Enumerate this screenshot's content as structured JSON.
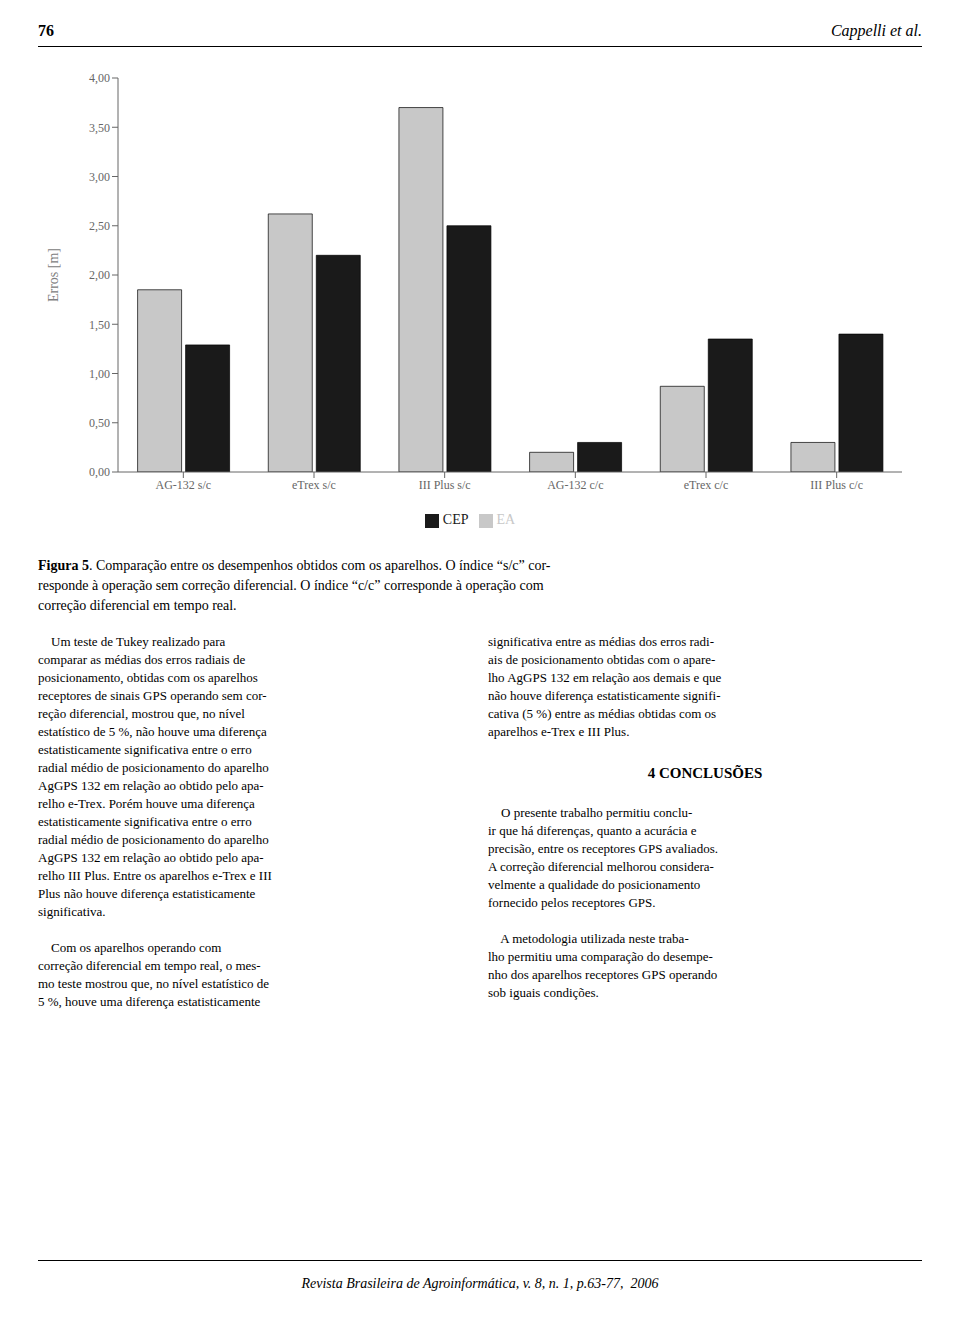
{
  "chart_data": {
    "type": "bar",
    "categories": [
      "AG-132 s/c",
      "eTrex s/c",
      "III Plus s/c",
      "AG-132 c/c",
      "eTrex c/c",
      "III Plus c/c"
    ],
    "series": [
      {
        "name": "EA",
        "color": "#C8C8C8",
        "values": [
          1.85,
          2.62,
          3.7,
          0.2,
          0.87,
          0.3
        ]
      },
      {
        "name": "CEP",
        "color": "#1a1a1a",
        "values": [
          1.29,
          2.2,
          2.5,
          0.3,
          1.35,
          1.4
        ]
      }
    ],
    "ylabel": "Erros [m]",
    "ylim": [
      0,
      4.0
    ],
    "yticks": [
      {
        "value": 0.0,
        "label": "0,00"
      },
      {
        "value": 0.5,
        "label": "0,50"
      },
      {
        "value": 1.0,
        "label": "1,00"
      },
      {
        "value": 1.5,
        "label": "1,50"
      },
      {
        "value": 2.0,
        "label": "2,00"
      },
      {
        "value": 2.5,
        "label": "2,50"
      },
      {
        "value": 3.0,
        "label": "3,00"
      },
      {
        "value": 3.5,
        "label": "3,50"
      },
      {
        "value": 4.0,
        "label": "4,00"
      }
    ],
    "grid": false,
    "legend": "bottom",
    "annotations": [
      "76",
      "Cappelli et al.",
      "Figura 5",
      ". Comparação entre os desempenhos obtidos com os aparelhos. O índice “s/c” cor-\nresponde à operação sem correção diferencial. O índice “c/c” corresponde à operação com\ncorreção diferencial em tempo real.",
      "    Um teste de Tukey realizado para\ncomparar as médias dos erros radiais de\nposicionamento, obtidas com os aparelhos\nreceptores de sinais GPS operando sem cor-\nreção diferencial, mostrou que, no nível\nestatístico de 5 %, não houve uma diferença\nestatisticamente significativa entre o erro\nradial médio de posicionamento do aparelho\nAgGPS 132 em relação ao obtido pelo apa-\nrelho e-Trex. Porém houve uma diferença\nestatisticamente significativa entre o erro\nradial médio de posicionamento do aparelho\nAgGPS 132 em relação ao obtido pelo apa-\nrelho III Plus. Entre os aparelhos e-Trex e III\nPlus não houve diferença estatisticamente\nsignificativa.\n\n    Com os aparelhos operando com\ncorreção diferencial em tempo real, o mes-\nmo teste mostrou que, no nível estatístico de\n5 %, houve uma diferença estatisticamente",
      "significativa entre as médias dos erros radi-\nais de posicionamento obtidas com o apare-\nlho AgGPS 132 em relação aos demais e que\nnão houve diferença estatisticamente signifi-\ncativa (5 %) entre as médias obtidas com os\naparelhos e-Trex e III Plus.",
      "4 CONCLUSÕES",
      "    O presente trabalho permitiu conclu-\nir que há diferenças, quanto a acurácia e\nprecisão, entre os receptores GPS avaliados.\nA correção diferencial melhorou considera-\nvelmente a qualidade do posicionamento\nfornecido pelos receptores GPS.",
      "    A metodologia utilizada neste traba-\nlho permitiu uma comparação do desempe-\nnho dos aparelhos receptores GPS operando\nsob iguais condições.",
      "Revista Brasileira de Agroinformática, v. 8, n. 1, p.63-77,  2006"
    ]
  }
}
